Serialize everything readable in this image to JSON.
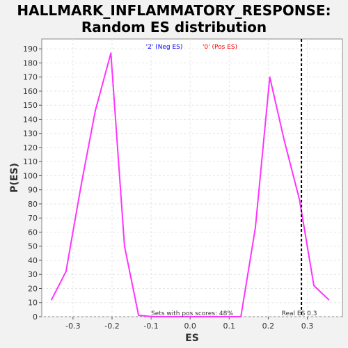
{
  "chart_data": {
    "type": "line",
    "title_line1": "HALLMARK_INFLAMMATORY_RESPONSE:",
    "title_line2": "Random ES distribution",
    "xlabel": "ES",
    "ylabel": "P(ES)",
    "xlim": [
      -0.38,
      0.39
    ],
    "ylim": [
      0,
      197
    ],
    "xticks": [
      -0.3,
      -0.2,
      -0.1,
      0.0,
      0.1,
      0.2,
      0.3
    ],
    "xtick_labels": [
      "-0.3",
      "-0.2",
      "-0.1",
      "0.0",
      "0.1",
      "0.2",
      "0.3"
    ],
    "yticks": [
      0,
      10,
      20,
      30,
      40,
      50,
      60,
      70,
      80,
      90,
      100,
      110,
      120,
      130,
      140,
      150,
      160,
      170,
      180,
      190
    ],
    "ytick_labels": [
      "0",
      "10",
      "20",
      "30",
      "40",
      "50",
      "60",
      "70",
      "80",
      "90",
      "100",
      "110",
      "120",
      "130",
      "140",
      "150",
      "160",
      "170",
      "180",
      "190"
    ],
    "grid": true,
    "series": [
      {
        "color": "#ff33ff",
        "x": [
          -0.355,
          -0.318,
          -0.278,
          -0.243,
          -0.203,
          -0.168,
          -0.132,
          -0.095,
          -0.058,
          -0.022,
          0.015,
          0.052,
          0.089,
          0.13,
          0.167,
          0.204,
          0.241,
          0.28,
          0.317,
          0.355
        ],
        "y": [
          12,
          32,
          95,
          146,
          187,
          50,
          1,
          0,
          0,
          0,
          0,
          0,
          0,
          0,
          63,
          170,
          125,
          83,
          22,
          12
        ]
      }
    ],
    "legend": [
      {
        "text": "'2' (Neg ES)",
        "color": "#0000ff"
      },
      {
        "text": "'0' (Pos ES)",
        "color": "#ff0000"
      }
    ],
    "annotations": {
      "pos_scores": "Sets with pos scores: 48%",
      "real_es_label": "Real ES 0.3",
      "real_es_value": 0.285
    }
  }
}
